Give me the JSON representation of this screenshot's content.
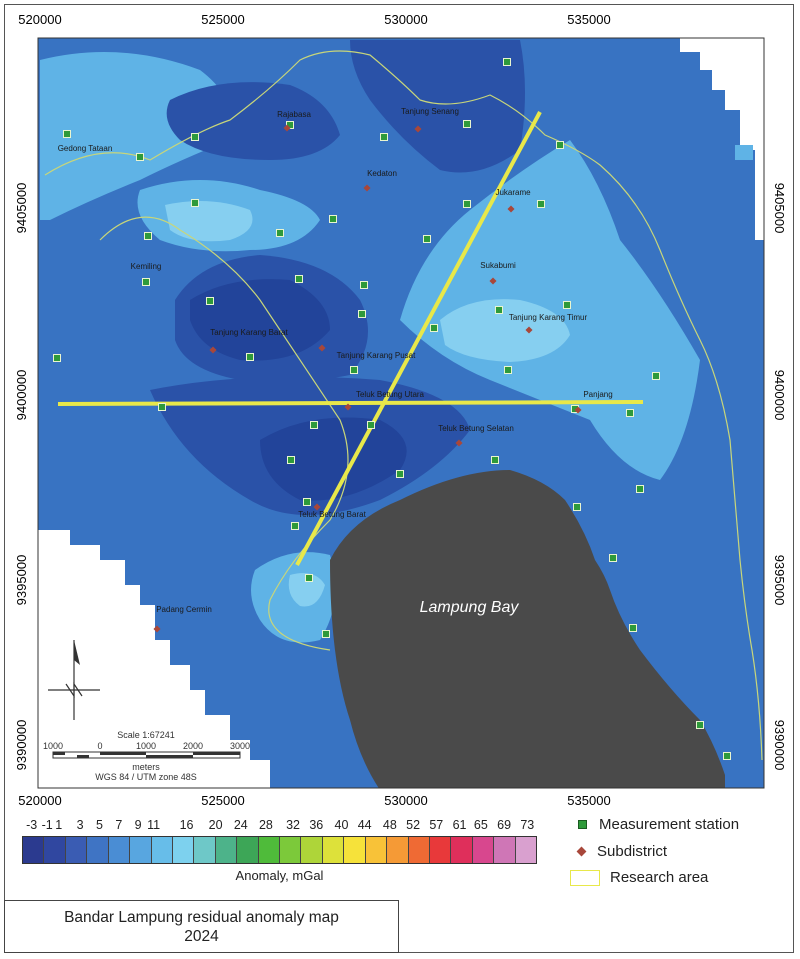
{
  "map": {
    "water_label": "Lampung Bay",
    "x_ticks": [
      "520000",
      "525000",
      "530000",
      "535000"
    ],
    "y_ticks": [
      "9405000",
      "9400000",
      "9395000",
      "9390000"
    ],
    "scale_text": "Scale 1:67241",
    "scale_ticks": [
      "1000",
      "0",
      "1000",
      "2000",
      "3000"
    ],
    "scale_unit": "meters",
    "crs": "WGS 84 / UTM zone 48S",
    "subdistricts": [
      "Rajabasa",
      "Tanjung Senang",
      "Gedong Tataan",
      "Kedaton",
      "Jukarame",
      "Kemiling",
      "Sukabumi",
      "Tanjung Karang Timur",
      "Tanjung Karang Barat",
      "Tanjung Karang Pusat",
      "Teluk Betung Utara",
      "Panjang",
      "Teluk Betung Selatan",
      "Teluk Betung Barat",
      "Padang Cermin"
    ],
    "colors": {
      "deep": "#2a52a8",
      "mid": "#3873c2",
      "light": "#5fb3e6",
      "lighter": "#86cff0",
      "land": "#4a4a4a",
      "profile": "#e8e84a",
      "boundary": "#c8d67a"
    }
  },
  "legend": {
    "colorbar_labels": [
      "-3",
      "-1",
      "1",
      "3",
      "5",
      "7",
      "9",
      "11",
      "16",
      "20",
      "24",
      "28",
      "32",
      "36",
      "40",
      "44",
      "48",
      "52",
      "57",
      "61",
      "65",
      "69",
      "73"
    ],
    "colorbar_colors": [
      "#2b3a8f",
      "#3047a0",
      "#3a5cb3",
      "#3f74c4",
      "#4a8dd4",
      "#58a6e0",
      "#67bde9",
      "#7dd1ee",
      "#6ec8c8",
      "#4db38a",
      "#3da657",
      "#4fbb3a",
      "#7cc93a",
      "#aed539",
      "#dde13a",
      "#f6e23a",
      "#f8c238",
      "#f59a36",
      "#ef6a34",
      "#e8393a",
      "#df2f5b",
      "#d8478e",
      "#cf76b6",
      "#d9a0cf"
    ],
    "axis_label": "Anomaly, mGal",
    "measurement_station": "Measurement station",
    "subdistrict": "Subdistrict",
    "research_area": "Research area",
    "title_line1": "Bandar Lampung residual anomaly map",
    "title_line2": "2024"
  }
}
